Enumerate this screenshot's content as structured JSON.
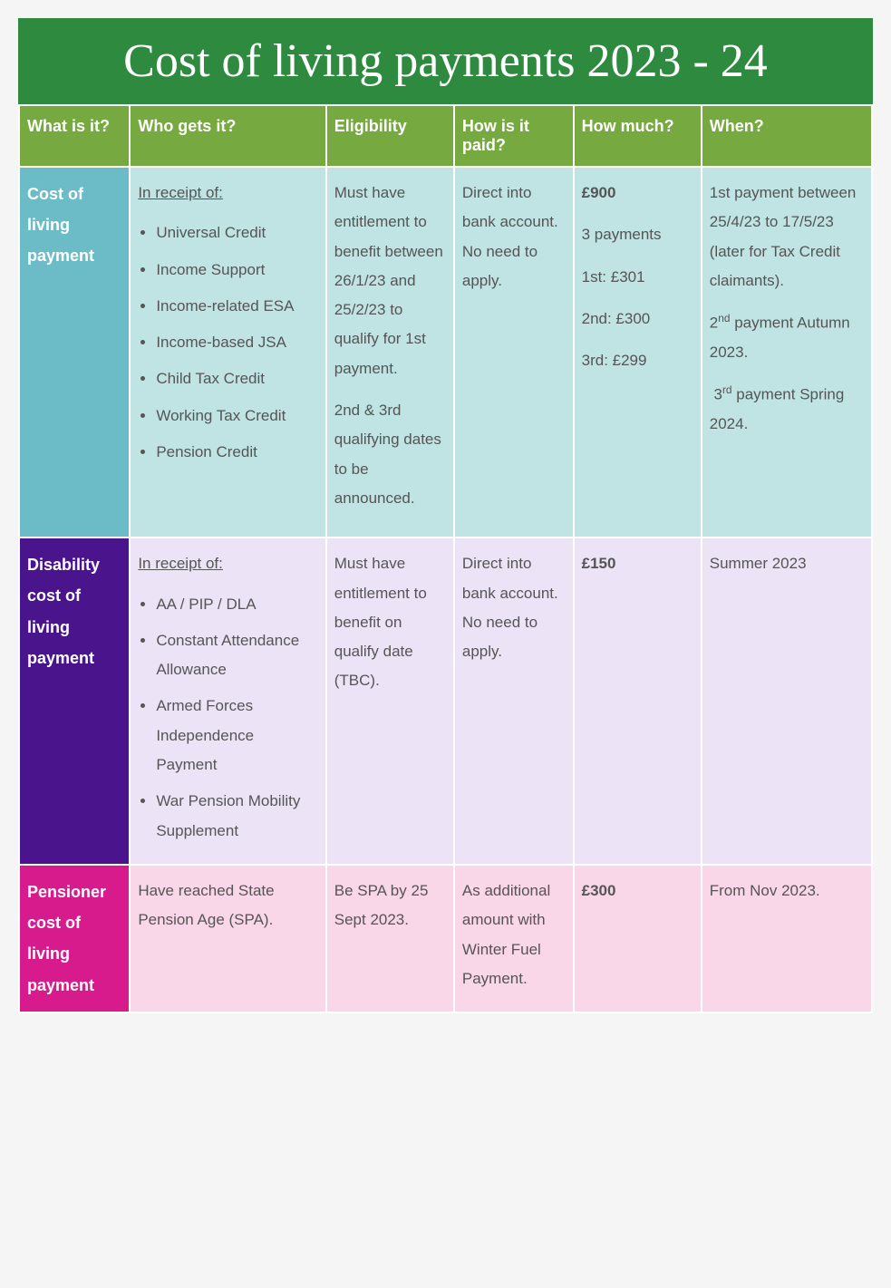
{
  "title": "Cost of living payments 2023 - 24",
  "columns": [
    "What is it?",
    "Who gets it?",
    "Eligibility",
    "How is it paid?",
    "How much?",
    "When?"
  ],
  "colors": {
    "title_bg": "#2d8a3e",
    "header_bg": "#76a940",
    "row1_label": "#6cbcc7",
    "row1_cell": "#bfe4e3",
    "row2_label": "#4a148c",
    "row2_cell": "#ede3f6",
    "row3_label": "#d81b8c",
    "row3_cell": "#f9d6e8",
    "text": "#555555",
    "header_text": "#ffffff"
  },
  "typography": {
    "title_font": "Brush Script MT",
    "title_size_pt": 40,
    "body_font": "Verdana",
    "body_size_pt": 13,
    "header_size_pt": 14
  },
  "rows": [
    {
      "name": "Cost of living payment",
      "who_intro": "In receipt of:",
      "who_list": [
        "Universal Credit",
        "Income Support",
        "Income-related ESA",
        "Income-based JSA",
        "Child Tax Credit",
        "Working Tax Credit",
        "Pension Credit"
      ],
      "eligibility_p1": "Must have entitlement to benefit between 26/1/23 and 25/2/23 to qualify for 1st payment.",
      "eligibility_p2": "2nd & 3rd qualifying dates to be announced.",
      "how_paid": "Direct into bank account. No need to apply.",
      "how_much_bold": "£900",
      "how_much_lines": [
        "3 payments",
        "1st: £301",
        "2nd: £300",
        "3rd: £299"
      ],
      "when_p1": "1st payment between 25/4/23 to 17/5/23 (later for Tax Credit claimants).",
      "when_p2_pre": "2",
      "when_p2_sup": "nd",
      "when_p2_post": " payment Autumn 2023.",
      "when_p3_pre": "3",
      "when_p3_sup": "rd",
      "when_p3_post": " payment Spring 2024."
    },
    {
      "name": "Disability cost of living payment",
      "who_intro": "In receipt of:",
      "who_list": [
        "AA / PIP / DLA",
        "Constant Attendance Allowance",
        "Armed Forces Independence Payment",
        "War Pension Mobility Supplement"
      ],
      "eligibility": "Must have entitlement to benefit on qualify date (TBC).",
      "how_paid": "Direct into bank account. No need to apply.",
      "how_much_bold": "£150",
      "when": "Summer 2023"
    },
    {
      "name": "Pensioner cost of living payment",
      "who": "Have reached State Pension Age (SPA).",
      "eligibility": "Be SPA by 25 Sept 2023.",
      "how_paid": "As additional amount with Winter Fuel Payment.",
      "how_much_bold": "£300",
      "when": "From Nov 2023."
    }
  ]
}
